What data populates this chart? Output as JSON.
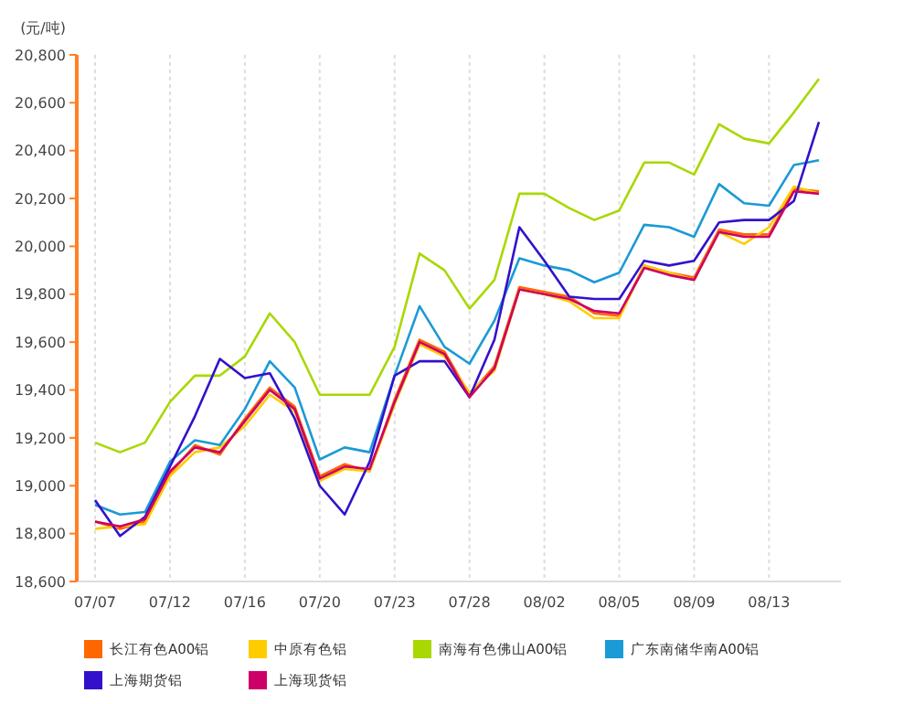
{
  "chart_data": {
    "type": "line",
    "ylabel": "(元/吨)",
    "categories": [
      "07/07",
      null,
      null,
      "07/12",
      null,
      null,
      "07/16",
      null,
      null,
      "07/20",
      null,
      null,
      "07/23",
      null,
      null,
      "07/28",
      null,
      null,
      "08/02",
      null,
      null,
      "08/05",
      null,
      null,
      "08/09",
      null,
      null,
      "08/13",
      null,
      null
    ],
    "ylim": [
      18600,
      20800
    ],
    "yticks": [
      {
        "value": 18600,
        "label": "18,600"
      },
      {
        "value": 18800,
        "label": "18,800"
      },
      {
        "value": 19000,
        "label": "19,000"
      },
      {
        "value": 19200,
        "label": "19,200"
      },
      {
        "value": 19400,
        "label": "19,400"
      },
      {
        "value": 19600,
        "label": "19,600"
      },
      {
        "value": 19800,
        "label": "19,800"
      },
      {
        "value": 20000,
        "label": "20,000"
      },
      {
        "value": 20200,
        "label": "20,200"
      },
      {
        "value": 20400,
        "label": "20,400"
      },
      {
        "value": 20600,
        "label": "20,600"
      },
      {
        "value": 20800,
        "label": "20,800"
      }
    ],
    "grid": "x",
    "legend": "bottom",
    "marker": "none",
    "line_style": "solid",
    "series": [
      {
        "name": "长江有色A00铝",
        "color": "#ff6600",
        "values": [
          18850,
          18820,
          18850,
          19050,
          19170,
          19130,
          19280,
          19410,
          19330,
          19040,
          19090,
          19060,
          19360,
          19610,
          19560,
          19380,
          19500,
          19830,
          19810,
          19790,
          19720,
          19710,
          19920,
          19890,
          19870,
          20070,
          20050,
          20050,
          20240,
          20230
        ]
      },
      {
        "name": "中原有色铝",
        "color": "#ffcc00",
        "values": [
          18820,
          18830,
          18840,
          19040,
          19140,
          19160,
          19250,
          19380,
          19310,
          19020,
          19070,
          19060,
          19340,
          19590,
          19540,
          19390,
          19480,
          19820,
          19800,
          19770,
          19700,
          19700,
          19920,
          19890,
          19860,
          20060,
          20010,
          20080,
          20250,
          20220
        ]
      },
      {
        "name": "南海有色佛山A00铝",
        "color": "#a8d800",
        "values": [
          19180,
          19140,
          19180,
          19350,
          19460,
          19460,
          19540,
          19720,
          19600,
          19380,
          19380,
          19380,
          19580,
          19970,
          19900,
          19740,
          19860,
          20220,
          20220,
          20160,
          20110,
          20150,
          20350,
          20350,
          20300,
          20510,
          20450,
          20430,
          20560,
          20700
        ]
      },
      {
        "name": "广东南储华南A00铝",
        "color": "#1a9ad6",
        "values": [
          18920,
          18880,
          18890,
          19100,
          19190,
          19170,
          19320,
          19520,
          19410,
          19110,
          19160,
          19140,
          19460,
          19750,
          19580,
          19510,
          19690,
          19950,
          19920,
          19900,
          19850,
          19890,
          20090,
          20080,
          20040,
          20260,
          20180,
          20170,
          20340,
          20360
        ]
      },
      {
        "name": "上海期货铝",
        "color": "#3311cc",
        "values": [
          18940,
          18790,
          18870,
          19080,
          19290,
          19530,
          19450,
          19470,
          19280,
          19000,
          18880,
          19100,
          19460,
          19520,
          19520,
          19370,
          19610,
          20080,
          19940,
          19790,
          19780,
          19780,
          19940,
          19920,
          19940,
          20100,
          20110,
          20110,
          20190,
          20520
        ]
      },
      {
        "name": "上海现货铝",
        "color": "#cc0066",
        "values": [
          18850,
          18830,
          18860,
          19060,
          19160,
          19140,
          19270,
          19400,
          19320,
          19030,
          19080,
          19070,
          19350,
          19600,
          19550,
          19370,
          19490,
          19820,
          19800,
          19780,
          19730,
          19720,
          19910,
          19880,
          19860,
          20060,
          20040,
          20040,
          20230,
          20220
        ]
      }
    ]
  }
}
